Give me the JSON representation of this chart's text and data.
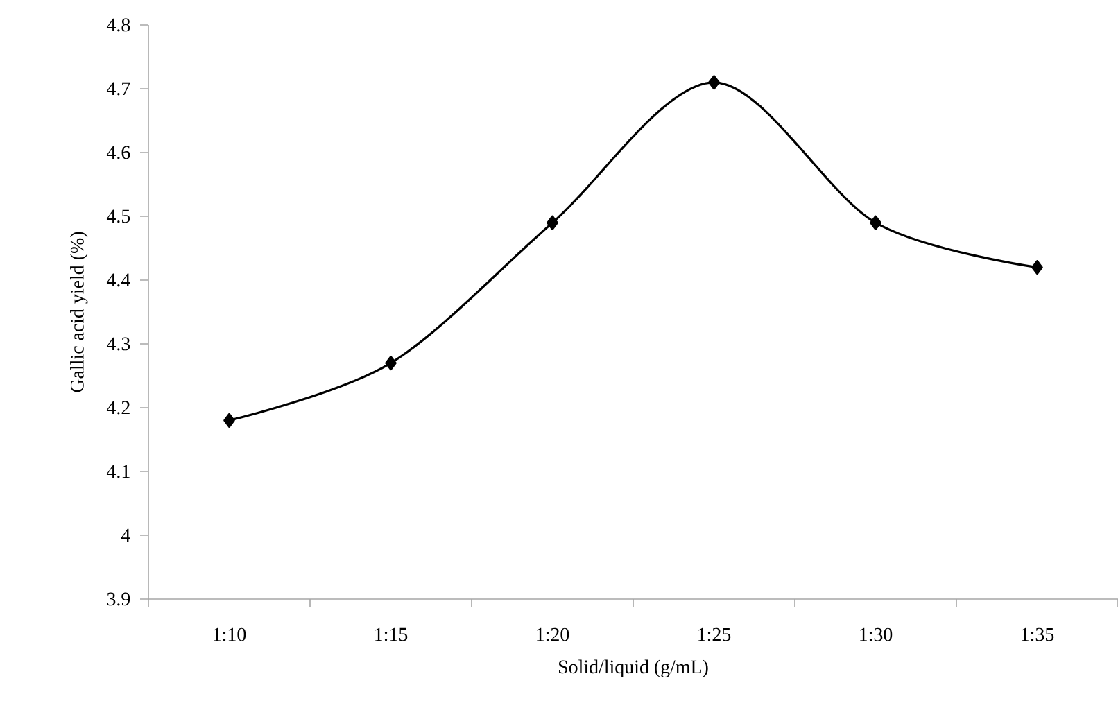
{
  "chart_data": {
    "type": "line",
    "xlabel": "Solid/liquid (g/mL)",
    "ylabel": "Gallic acid yield (%)",
    "categories": [
      "1:10",
      "1:15",
      "1:20",
      "1:25",
      "1:30",
      "1:35"
    ],
    "series": [
      {
        "color": "#000000",
        "values": [
          4.18,
          4.27,
          4.49,
          4.71,
          4.49,
          4.42
        ]
      }
    ],
    "ylim": [
      3.9,
      4.8
    ],
    "yticks": [
      3.9,
      4,
      4.1,
      4.2,
      4.3,
      4.4,
      4.5,
      4.6,
      4.7,
      4.8
    ],
    "marker": "diamond",
    "line_style": "solid",
    "grid": false
  }
}
